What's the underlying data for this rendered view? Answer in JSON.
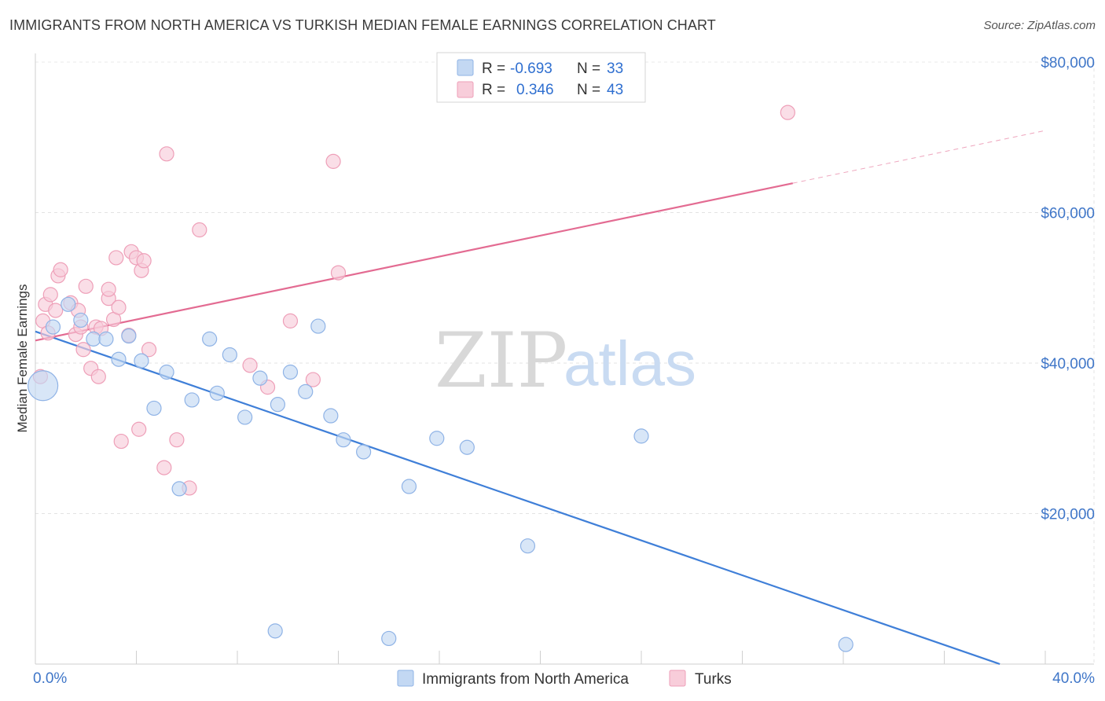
{
  "header": {
    "title": "IMMIGRANTS FROM NORTH AMERICA VS TURKISH MEDIAN FEMALE EARNINGS CORRELATION CHART",
    "source": "Source: ZipAtlas.com"
  },
  "watermark": {
    "zip": "ZIP",
    "atlas": "atlas"
  },
  "legend_top": {
    "rows": [
      {
        "r_label": "R =",
        "r_value": "-0.693",
        "n_label": "N =",
        "n_value": "33",
        "color": "#a9c6ef"
      },
      {
        "r_label": "R =",
        "r_value": "0.346",
        "n_label": "N =",
        "n_value": "43",
        "color": "#f5b6c9"
      }
    ]
  },
  "legend_bottom": {
    "items": [
      {
        "label": "Immigrants from North America",
        "color": "#a9c6ef"
      },
      {
        "label": "Turks",
        "color": "#f5b6c9"
      }
    ]
  },
  "chart_data": {
    "type": "scatter",
    "title": "IMMIGRANTS FROM NORTH AMERICA VS TURKISH MEDIAN FEMALE EARNINGS CORRELATION CHART",
    "xlabel": "",
    "ylabel": "Median Female Earnings",
    "xlim": [
      0,
      40
    ],
    "ylim": [
      0,
      80000
    ],
    "x_tick_labels": [
      "0.0%",
      "40.0%"
    ],
    "y_ticks": [
      20000,
      40000,
      60000,
      80000
    ],
    "y_tick_labels": [
      "$20,000",
      "$40,000",
      "$60,000",
      "$80,000"
    ],
    "grid": true,
    "legend_position": "bottom",
    "series": [
      {
        "name": "Immigrants from North America",
        "color": "#3f7fd8",
        "fill": "#c3d8f3",
        "stroke": "#8fb3e6",
        "points": [
          [
            0.3,
            37000
          ],
          [
            0.7,
            44800
          ],
          [
            1.3,
            47800
          ],
          [
            1.8,
            45700
          ],
          [
            2.3,
            43200
          ],
          [
            2.8,
            43200
          ],
          [
            3.3,
            40500
          ],
          [
            3.7,
            43600
          ],
          [
            4.2,
            40300
          ],
          [
            4.7,
            34000
          ],
          [
            5.2,
            38800
          ],
          [
            5.7,
            23300
          ],
          [
            6.2,
            35100
          ],
          [
            6.9,
            43200
          ],
          [
            7.2,
            36000
          ],
          [
            7.7,
            41100
          ],
          [
            8.3,
            32800
          ],
          [
            8.9,
            38000
          ],
          [
            9.5,
            4400
          ],
          [
            9.6,
            34500
          ],
          [
            10.1,
            38800
          ],
          [
            10.7,
            36200
          ],
          [
            11.2,
            44900
          ],
          [
            11.7,
            33000
          ],
          [
            12.2,
            29800
          ],
          [
            13.0,
            28200
          ],
          [
            14.0,
            3400
          ],
          [
            14.8,
            23600
          ],
          [
            15.9,
            30000
          ],
          [
            17.1,
            28800
          ],
          [
            19.5,
            15700
          ],
          [
            24.0,
            30300
          ],
          [
            32.1,
            2600
          ]
        ],
        "sizes": [
          3,
          1,
          1,
          1,
          1,
          1,
          1,
          1,
          1,
          1,
          1,
          1,
          1,
          1,
          1,
          1,
          1,
          1,
          1,
          1,
          1,
          1,
          1,
          1,
          1,
          1,
          1,
          1,
          1,
          1,
          1,
          1,
          1
        ],
        "trend": {
          "x": [
            0,
            38.2
          ],
          "y": [
            44200,
            0
          ],
          "dashed_to": null
        }
      },
      {
        "name": "Turks",
        "color": "#e36b92",
        "fill": "#f8cdda",
        "stroke": "#ee9fb8",
        "points": [
          [
            0.2,
            38200
          ],
          [
            0.3,
            45600
          ],
          [
            0.4,
            47800
          ],
          [
            0.6,
            49100
          ],
          [
            0.8,
            47000
          ],
          [
            0.9,
            51600
          ],
          [
            1.0,
            52400
          ],
          [
            1.4,
            48000
          ],
          [
            1.6,
            43800
          ],
          [
            1.7,
            47000
          ],
          [
            1.8,
            44800
          ],
          [
            1.9,
            41800
          ],
          [
            2.0,
            50200
          ],
          [
            2.2,
            39300
          ],
          [
            2.4,
            44800
          ],
          [
            2.5,
            38200
          ],
          [
            2.6,
            44600
          ],
          [
            2.9,
            48600
          ],
          [
            2.9,
            49800
          ],
          [
            3.1,
            45800
          ],
          [
            3.2,
            54000
          ],
          [
            3.3,
            47400
          ],
          [
            3.4,
            29600
          ],
          [
            3.7,
            43700
          ],
          [
            3.8,
            54800
          ],
          [
            4.0,
            54000
          ],
          [
            4.1,
            31200
          ],
          [
            4.2,
            52300
          ],
          [
            4.3,
            53600
          ],
          [
            4.5,
            41800
          ],
          [
            5.1,
            26100
          ],
          [
            5.2,
            67800
          ],
          [
            5.6,
            29800
          ],
          [
            6.1,
            23400
          ],
          [
            6.5,
            57700
          ],
          [
            8.5,
            39700
          ],
          [
            9.2,
            36800
          ],
          [
            10.1,
            45600
          ],
          [
            11.0,
            37800
          ],
          [
            11.8,
            66800
          ],
          [
            12.0,
            52000
          ],
          [
            29.8,
            73300
          ],
          [
            0.5,
            44000
          ]
        ],
        "sizes": [
          1,
          1,
          1,
          1,
          1,
          1,
          1,
          1,
          1,
          1,
          1,
          1,
          1,
          1,
          1,
          1,
          1,
          1,
          1,
          1,
          1,
          1,
          1,
          1,
          1,
          1,
          1,
          1,
          1,
          1,
          1,
          1,
          1,
          1,
          1,
          1,
          1,
          1,
          1,
          1,
          1,
          1,
          1
        ],
        "trend": {
          "x": [
            0,
            30
          ],
          "y": [
            43000,
            63900
          ],
          "dashed_to": [
            40,
            70900
          ]
        }
      }
    ]
  }
}
